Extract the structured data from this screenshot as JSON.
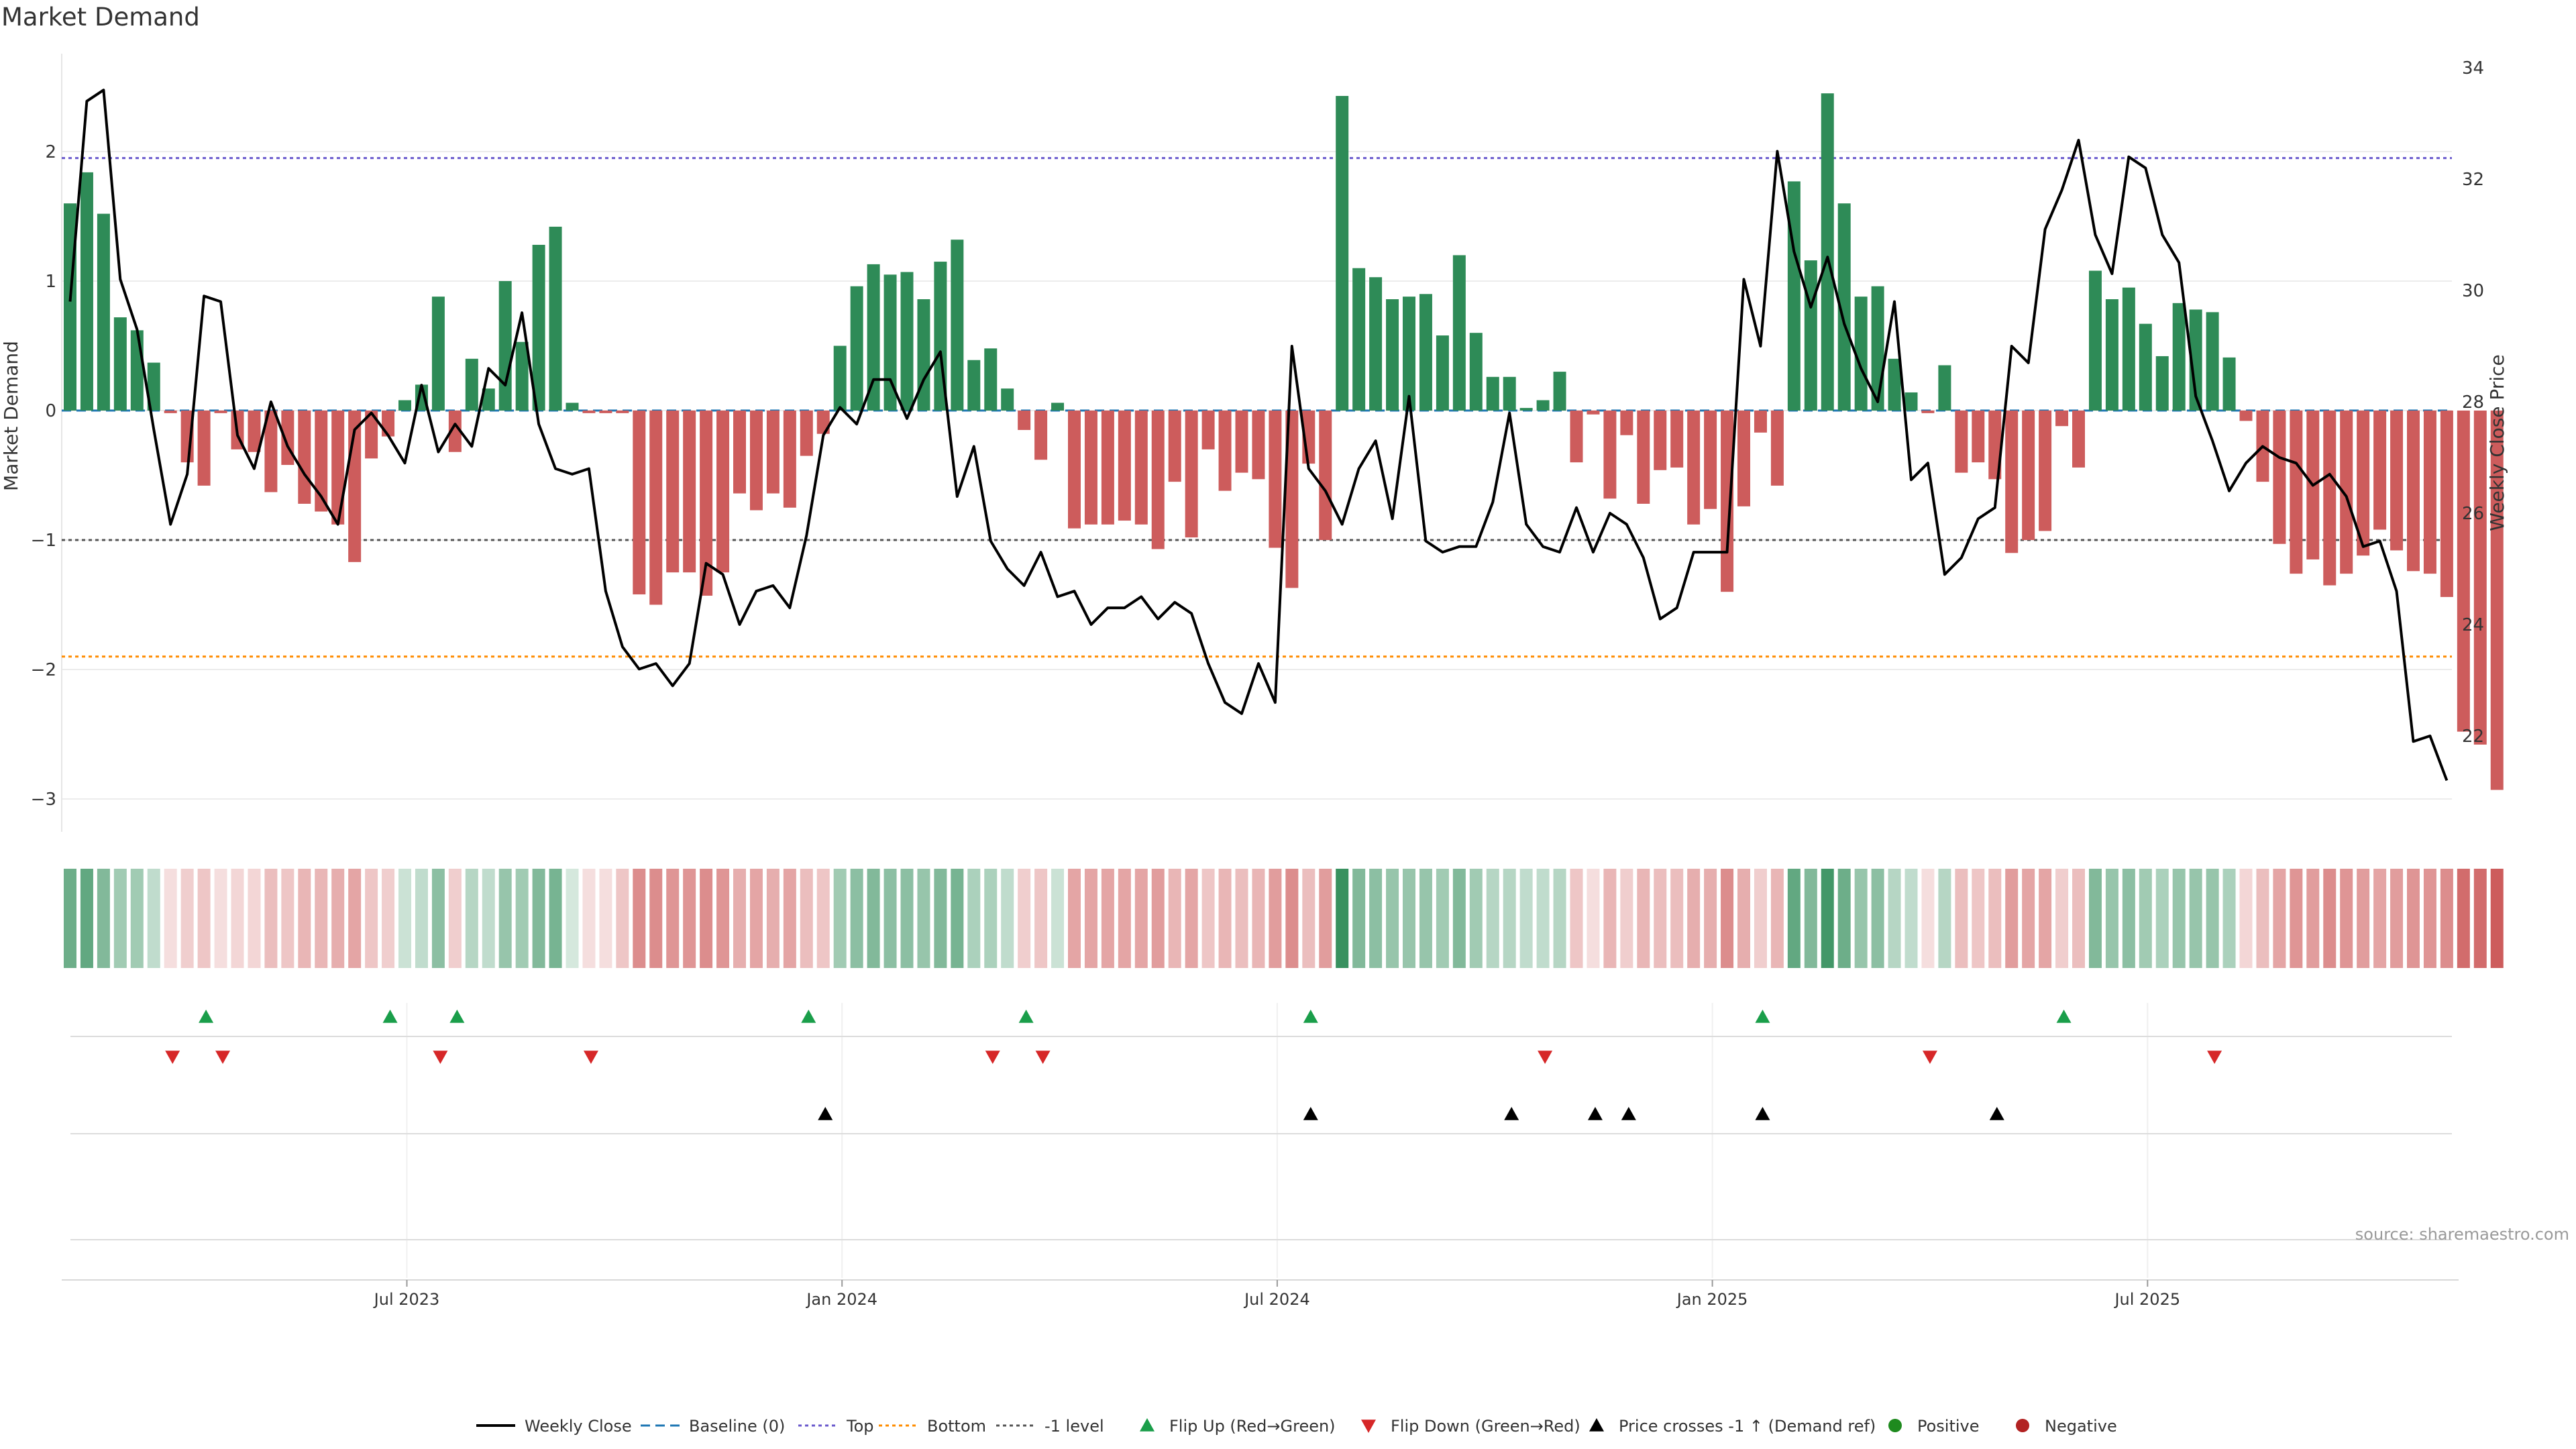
{
  "chart_data": {
    "type": "bar",
    "title": "Market Demand",
    "source": "source: sharemaestro.com",
    "ylabel_left": "Market Demand",
    "ylabel_right": "Weekly Close Price",
    "ylim_left": [
      -3.2,
      2.8
    ],
    "ylim_right": [
      20.9,
      34.4
    ],
    "left_ticks": [
      "2",
      "1",
      "0",
      "−1",
      "−2",
      "−3"
    ],
    "left_tick_values": [
      2,
      1,
      0,
      -1,
      -2,
      -3
    ],
    "right_ticks": [
      "22",
      "24",
      "26",
      "28",
      "30",
      "32",
      "34"
    ],
    "right_tick_values": [
      22,
      24,
      26,
      28,
      30,
      32,
      34
    ],
    "x_ticks": [
      "Jul 2023",
      "Jan 2024",
      "Jul 2024",
      "Jan 2025",
      "Jul 2025"
    ],
    "x_tick_weeks": [
      20,
      46,
      72,
      98,
      124
    ],
    "ref_levels": {
      "top": 1.95,
      "bottom": -1.9,
      "minus_one": -1.0
    },
    "demand": [
      1.6,
      1.84,
      1.52,
      0.72,
      0.62,
      0.37,
      -0.02,
      -0.4,
      -0.58,
      -0.02,
      -0.3,
      -0.32,
      -0.63,
      -0.42,
      -0.72,
      -0.78,
      -0.88,
      -1.17,
      -0.37,
      -0.2,
      0.08,
      0.2,
      0.88,
      -0.32,
      0.4,
      0.17,
      1.0,
      0.53,
      1.28,
      1.42,
      0.06,
      -0.02,
      -0.02,
      -0.02,
      -1.42,
      -1.5,
      -1.25,
      -1.25,
      -1.43,
      -1.25,
      -0.64,
      -0.77,
      -0.64,
      -0.75,
      -0.35,
      -0.18,
      0.5,
      0.96,
      1.13,
      1.05,
      1.07,
      0.86,
      1.15,
      1.32,
      0.39,
      0.48,
      0.17,
      -0.15,
      -0.38,
      0.06,
      -0.91,
      -0.88,
      -0.88,
      -0.85,
      -0.88,
      -1.07,
      -0.55,
      -0.98,
      -0.3,
      -0.62,
      -0.48,
      -0.53,
      -1.06,
      -1.37,
      -0.41,
      -1.0,
      2.43,
      1.1,
      1.03,
      0.86,
      0.88,
      0.9,
      0.58,
      1.2,
      0.6,
      0.26,
      0.26,
      0.02,
      0.08,
      0.3,
      -0.4,
      -0.03,
      -0.68,
      -0.19,
      -0.72,
      -0.46,
      -0.44,
      -0.88,
      -0.76,
      -1.4,
      -0.74,
      -0.17,
      -0.58,
      1.77,
      1.16,
      2.45,
      1.6,
      0.88,
      0.96,
      0.4,
      0.14,
      -0.02,
      0.35,
      -0.48,
      -0.4,
      -0.53,
      -1.1,
      -1.0,
      -0.93,
      -0.12,
      -0.44,
      1.08,
      0.86,
      0.95,
      0.67,
      0.42,
      0.83,
      0.78,
      0.76,
      0.41,
      -0.08,
      -0.55,
      -1.03,
      -1.26,
      -1.15,
      -1.35,
      -1.26,
      -1.12,
      -0.92,
      -1.08,
      -1.24,
      -1.26,
      -1.44,
      -2.48,
      -2.58,
      -2.93
    ],
    "weekly_close": [
      29.8,
      33.4,
      33.6,
      30.2,
      29.3,
      27.5,
      25.8,
      26.7,
      29.9,
      29.8,
      27.4,
      26.8,
      28.0,
      27.2,
      26.7,
      26.3,
      25.8,
      27.5,
      27.8,
      27.4,
      26.9,
      28.3,
      27.1,
      27.6,
      27.2,
      28.6,
      28.3,
      29.6,
      27.6,
      26.8,
      26.7,
      26.8,
      24.6,
      23.6,
      23.2,
      23.3,
      22.9,
      23.3,
      25.1,
      24.9,
      24.0,
      24.6,
      24.7,
      24.3,
      25.6,
      27.4,
      27.9,
      27.6,
      28.4,
      28.4,
      27.7,
      28.4,
      28.9,
      26.3,
      27.2,
      25.5,
      25.0,
      24.7,
      25.3,
      24.5,
      24.6,
      24.0,
      24.3,
      24.3,
      24.5,
      24.1,
      24.4,
      24.2,
      23.3,
      22.6,
      22.4,
      23.3,
      22.6,
      29.0,
      26.8,
      26.4,
      25.8,
      26.8,
      27.3,
      25.9,
      28.1,
      25.5,
      25.3,
      25.4,
      25.4,
      26.2,
      27.8,
      25.8,
      25.4,
      25.3,
      26.1,
      25.3,
      26.0,
      25.8,
      25.2,
      24.1,
      24.3,
      25.3,
      25.3,
      25.3,
      30.2,
      29.0,
      32.5,
      30.7,
      29.7,
      30.6,
      29.4,
      28.6,
      28.0,
      29.8,
      26.6,
      26.9,
      24.9,
      25.2,
      25.9,
      26.1,
      29.0,
      28.7,
      31.1,
      31.8,
      32.7,
      31.0,
      30.3,
      32.4,
      32.2,
      31.0,
      30.5,
      28.1,
      27.3,
      26.4,
      26.9,
      27.2,
      27.0,
      26.9,
      26.5,
      26.7,
      26.3,
      25.4,
      25.5,
      24.6,
      21.9,
      22.0,
      21.2
    ],
    "heat_intensity": [
      0.7,
      0.75,
      0.6,
      0.45,
      0.45,
      0.3,
      0.2,
      0.3,
      0.35,
      0.2,
      0.25,
      0.25,
      0.4,
      0.35,
      0.45,
      0.45,
      0.5,
      0.55,
      0.35,
      0.3,
      0.25,
      0.3,
      0.55,
      0.3,
      0.35,
      0.3,
      0.5,
      0.45,
      0.6,
      0.65,
      0.2,
      0.2,
      0.2,
      0.35,
      0.7,
      0.7,
      0.65,
      0.65,
      0.7,
      0.65,
      0.5,
      0.55,
      0.5,
      0.55,
      0.4,
      0.35,
      0.45,
      0.55,
      0.6,
      0.55,
      0.55,
      0.5,
      0.6,
      0.65,
      0.4,
      0.4,
      0.3,
      0.3,
      0.35,
      0.25,
      0.55,
      0.55,
      0.55,
      0.55,
      0.55,
      0.6,
      0.45,
      0.55,
      0.35,
      0.45,
      0.4,
      0.45,
      0.6,
      0.7,
      0.4,
      0.6,
      0.95,
      0.6,
      0.55,
      0.5,
      0.5,
      0.5,
      0.45,
      0.6,
      0.45,
      0.35,
      0.35,
      0.3,
      0.3,
      0.35,
      0.35,
      0.2,
      0.45,
      0.3,
      0.45,
      0.4,
      0.4,
      0.5,
      0.5,
      0.7,
      0.5,
      0.3,
      0.45,
      0.75,
      0.6,
      0.9,
      0.7,
      0.5,
      0.55,
      0.35,
      0.3,
      0.2,
      0.35,
      0.4,
      0.35,
      0.4,
      0.6,
      0.55,
      0.55,
      0.3,
      0.4,
      0.6,
      0.5,
      0.55,
      0.45,
      0.4,
      0.5,
      0.5,
      0.5,
      0.4,
      0.25,
      0.4,
      0.55,
      0.65,
      0.6,
      0.7,
      0.65,
      0.6,
      0.55,
      0.6,
      0.65,
      0.65,
      0.7,
      0.9,
      0.9,
      1.0
    ],
    "flip_up_weeks": [
      8,
      19,
      23,
      44,
      57,
      74,
      101,
      119
    ],
    "flip_down_weeks": [
      6,
      9,
      22,
      31,
      55,
      58,
      88,
      111,
      128
    ],
    "price_cross_weeks": [
      45,
      74,
      86,
      91,
      93,
      101,
      115
    ],
    "legend": [
      {
        "key": "weekly_close",
        "label": "Weekly Close"
      },
      {
        "key": "baseline",
        "label": "Baseline (0)"
      },
      {
        "key": "top",
        "label": "Top"
      },
      {
        "key": "bottom",
        "label": "Bottom"
      },
      {
        "key": "minus_one",
        "label": "-1 level"
      },
      {
        "key": "flip_up",
        "label": "Flip Up (Red→Green)"
      },
      {
        "key": "flip_down",
        "label": "Flip Down (Green→Red)"
      },
      {
        "key": "price_cross",
        "label": "Price crosses -1 ↑ (Demand ref)"
      },
      {
        "key": "positive",
        "label": "Positive"
      },
      {
        "key": "negative",
        "label": "Negative"
      }
    ]
  },
  "colors": {
    "positive": "#2e8b57",
    "negative": "#cd5c5c",
    "line": "#000000",
    "baseline": "#1f77b4",
    "top": "#6a5acd",
    "bottom": "#ff8c00",
    "minus_one": "#555555",
    "flip_up": "#1a9e4a",
    "flip_down": "#d62728",
    "price_cross": "#000000",
    "positive_dot": "#1e8a1e",
    "negative_dot": "#b22222"
  }
}
